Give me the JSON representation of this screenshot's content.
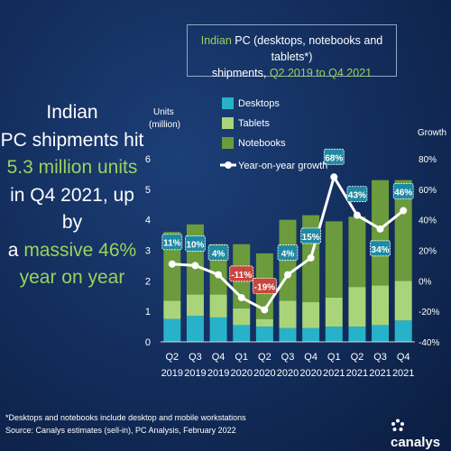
{
  "title": {
    "part1_green": "Indian",
    "part2": " PC (desktops, notebooks and tablets*)",
    "line2_part1": "shipments, ",
    "line2_part2_green": "Q2 2019 to Q4 2021"
  },
  "headline": {
    "line1": "Indian",
    "line2": "PC shipments hit",
    "line3_green": "5.3 million units",
    "line4": "in Q4 2021, up by",
    "line5_part1": "a ",
    "line5_part2_green": "massive 46%",
    "line6_green": "year on year"
  },
  "footnote": {
    "line1": "*Desktops and notebooks include desktop and mobile workstations",
    "line2": "Source: Canalys estimates (sell-in), PC Analysis, February 2022"
  },
  "logo": {
    "text": "canalys",
    "icon": "canalys-dots-icon"
  },
  "colors": {
    "desktops": "#27b2c9",
    "tablets": "#a9d47a",
    "notebooks": "#6b9b3c",
    "growth_line": "#ffffff",
    "positive_label_bg": "#1f8aa3",
    "negative_label_bg": "#c9463d",
    "green_text": "#9bd25a"
  },
  "chart_data": {
    "type": "bar",
    "subtype": "stacked bar with line",
    "categories": [
      {
        "quarter": "Q2",
        "year": "2019"
      },
      {
        "quarter": "Q3",
        "year": "2019"
      },
      {
        "quarter": "Q4",
        "year": "2019"
      },
      {
        "quarter": "Q1",
        "year": "2020"
      },
      {
        "quarter": "Q2",
        "year": "2020"
      },
      {
        "quarter": "Q3",
        "year": "2020"
      },
      {
        "quarter": "Q4",
        "year": "2020"
      },
      {
        "quarter": "Q1",
        "year": "2021"
      },
      {
        "quarter": "Q2",
        "year": "2021"
      },
      {
        "quarter": "Q3",
        "year": "2021"
      },
      {
        "quarter": "Q4",
        "year": "2021"
      }
    ],
    "series": [
      {
        "name": "Desktops",
        "values": [
          0.75,
          0.85,
          0.8,
          0.55,
          0.5,
          0.45,
          0.45,
          0.5,
          0.5,
          0.55,
          0.7
        ]
      },
      {
        "name": "Tablets",
        "values": [
          0.6,
          0.7,
          0.75,
          0.55,
          0.25,
          0.9,
          0.85,
          0.95,
          1.3,
          1.3,
          1.3
        ]
      },
      {
        "name": "Notebooks",
        "values": [
          2.25,
          2.3,
          1.65,
          2.1,
          2.15,
          2.65,
          2.85,
          2.5,
          2.3,
          3.45,
          3.3
        ]
      }
    ],
    "line_series": {
      "name": "Year-on-year growth",
      "values": [
        11,
        10,
        4,
        -11,
        -19,
        4,
        15,
        68,
        43,
        34,
        46
      ],
      "labels": [
        "11%",
        "10%",
        "4%",
        "-11%",
        "-19%",
        "4%",
        "15%",
        "68%",
        "43%",
        "34%",
        "46%"
      ]
    },
    "y_left": {
      "label_line1": "Units",
      "label_line2": "(million)",
      "min": 0,
      "max": 6,
      "ticks": [
        "0",
        "1",
        "2",
        "3",
        "4",
        "5",
        "6"
      ]
    },
    "y_right": {
      "label": "Growth",
      "min": -40,
      "max": 80,
      "ticks": [
        "-40%",
        "-20%",
        "0%",
        "20%",
        "40%",
        "60%",
        "80%"
      ]
    },
    "legend_position": "top-center",
    "grid": false
  }
}
